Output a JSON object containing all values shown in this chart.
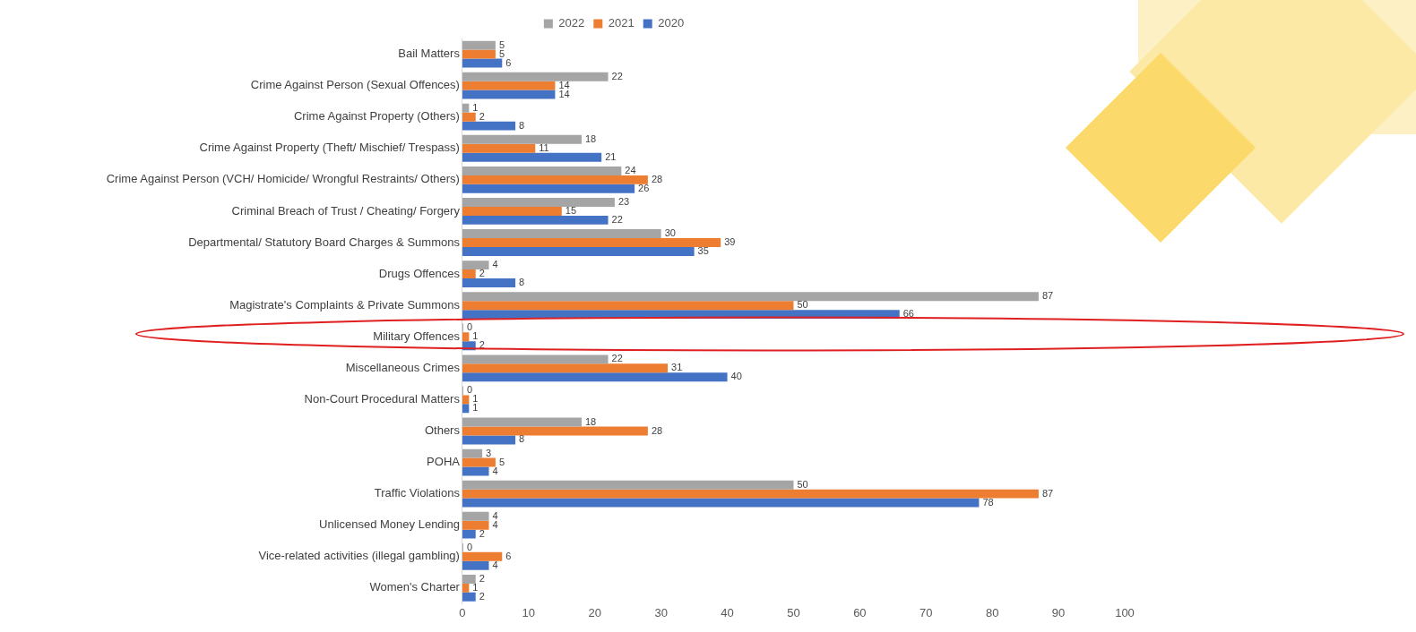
{
  "chart_data": {
    "type": "bar",
    "orientation": "horizontal",
    "categories": [
      "Bail Matters",
      "Crime Against Person (Sexual Offences)",
      "Crime Against Property (Others)",
      "Crime Against Property (Theft/ Mischief/ Trespass)",
      "Crime Against Person (VCH/ Homicide/ Wrongful Restraints/ Others)",
      "Criminal Breach of Trust / Cheating/ Forgery",
      "Departmental/ Statutory Board Charges & Summons",
      "Drugs Offences",
      "Magistrate's Complaints & Private Summons",
      "Military Offences",
      "Miscellaneous Crimes",
      "Non-Court Procedural Matters",
      "Others",
      "POHA",
      "Traffic Violations",
      "Unlicensed Money Lending",
      "Vice-related activities (illegal gambling)",
      "Women's Charter"
    ],
    "series": [
      {
        "name": "2022",
        "color": "#a5a5a5",
        "values": [
          5,
          22,
          1,
          18,
          24,
          23,
          30,
          4,
          87,
          0,
          22,
          0,
          18,
          3,
          50,
          4,
          0,
          2
        ]
      },
      {
        "name": "2021",
        "color": "#ed7d31",
        "values": [
          5,
          14,
          2,
          11,
          28,
          15,
          39,
          2,
          50,
          1,
          31,
          1,
          28,
          5,
          87,
          4,
          6,
          1
        ]
      },
      {
        "name": "2020",
        "color": "#4472c4",
        "values": [
          6,
          14,
          8,
          21,
          26,
          22,
          35,
          8,
          66,
          2,
          40,
          1,
          8,
          4,
          78,
          2,
          4,
          2
        ]
      }
    ],
    "xlim": [
      0,
      100
    ],
    "xticks": [
      0,
      10,
      20,
      30,
      40,
      50,
      60,
      70,
      80,
      90,
      100
    ],
    "data_labels": true,
    "legend": "top",
    "grid": false
  }
}
